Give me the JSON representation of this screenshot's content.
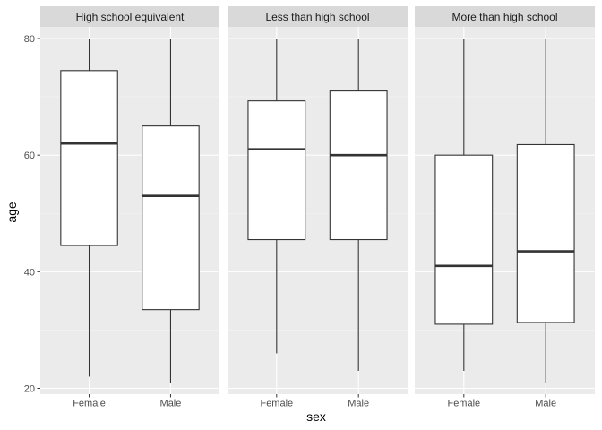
{
  "chart_data": {
    "type": "boxplot",
    "xlabel": "sex",
    "ylabel": "age",
    "ylim": [
      19,
      82
    ],
    "yticks": [
      20,
      40,
      60,
      80
    ],
    "categories": [
      "Female",
      "Male"
    ],
    "grid": true,
    "facets": [
      {
        "label": "High school equivalent",
        "boxes": [
          {
            "category": "Female",
            "min": 22,
            "q1": 44.5,
            "median": 62,
            "q3": 74.5,
            "max": 80
          },
          {
            "category": "Male",
            "min": 21,
            "q1": 33.5,
            "median": 53,
            "q3": 65,
            "max": 80
          }
        ]
      },
      {
        "label": "Less than high school",
        "boxes": [
          {
            "category": "Female",
            "min": 26,
            "q1": 45.5,
            "median": 61,
            "q3": 69.3,
            "max": 80
          },
          {
            "category": "Male",
            "min": 23,
            "q1": 45.5,
            "median": 60,
            "q3": 71,
            "max": 80
          }
        ]
      },
      {
        "label": "More than high school",
        "boxes": [
          {
            "category": "Female",
            "min": 23,
            "q1": 31,
            "median": 41,
            "q3": 60,
            "max": 80
          },
          {
            "category": "Male",
            "min": 21,
            "q1": 31.3,
            "median": 43.5,
            "q3": 61.8,
            "max": 80
          }
        ]
      }
    ]
  }
}
